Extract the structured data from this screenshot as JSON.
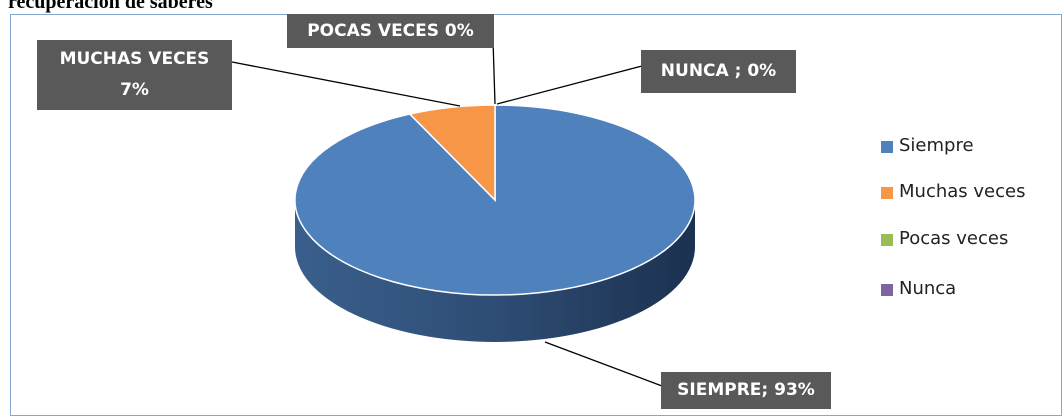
{
  "chart_data": {
    "type": "pie",
    "title": "recuperación de saberes",
    "categories": [
      "Siempre",
      "Muchas veces",
      "Pocas veces",
      "Nunca"
    ],
    "values": [
      93,
      7,
      0,
      0
    ],
    "value_labels": [
      "SIEMPRE; 93%",
      "MUCHAS VECES 7%",
      "POCAS VECES 0%",
      "NUNCA ; 0%"
    ],
    "colors": [
      "#4f81bd",
      "#f79646",
      "#9bbb59",
      "#8064a2"
    ],
    "legend": "right"
  }
}
